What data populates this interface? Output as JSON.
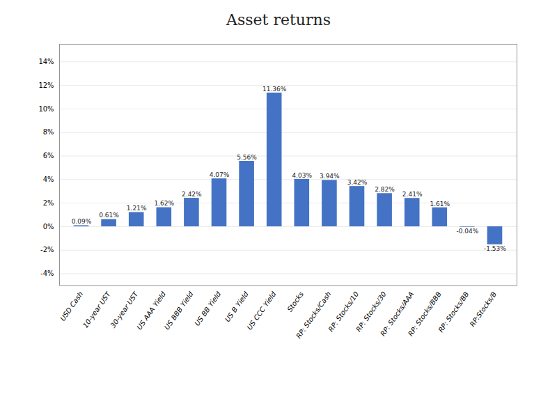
{
  "chart_data": {
    "type": "bar",
    "title": "Asset returns",
    "categories": [
      "USD Cash",
      "10-year UST",
      "30-year UST",
      "US AAA Yield",
      "US BBB Yield",
      "US BB Yield",
      "US B Yield",
      "US CCC Yield",
      "Stocks",
      "RP: Stocks/Cash",
      "RP: Stocks/10",
      "RP: Stocks/30",
      "RP: Stocks/AAA",
      "RP: Stocks/BBB",
      "RP: Stocks/BB",
      "RP:Stocks/B"
    ],
    "values": [
      0.0009,
      0.0061,
      0.0121,
      0.0162,
      0.0242,
      0.0407,
      0.0556,
      0.1136,
      0.0403,
      0.0394,
      0.0342,
      0.0282,
      0.0241,
      0.0161,
      -0.0004,
      -0.0153
    ],
    "value_labels": [
      "0.09%",
      "0.61%",
      "1.21%",
      "1.62%",
      "2.42%",
      "4.07%",
      "5.56%",
      "11.36%",
      "4.03%",
      "3.94%",
      "3.42%",
      "2.82%",
      "2.41%",
      "1.61%",
      "-0.04%",
      "-1.53%"
    ],
    "data_labels": true,
    "color": "#4472C4",
    "ylim": [
      -0.05,
      0.155
    ],
    "yticks": [
      {
        "value": -0.04,
        "label": "-4%"
      },
      {
        "value": -0.02,
        "label": "-2%"
      },
      {
        "value": 0.0,
        "label": "0%"
      },
      {
        "value": 0.02,
        "label": "2%"
      },
      {
        "value": 0.04,
        "label": "4%"
      },
      {
        "value": 0.06,
        "label": "6%"
      },
      {
        "value": 0.08,
        "label": "8%"
      },
      {
        "value": 0.1,
        "label": "10%"
      },
      {
        "value": 0.12,
        "label": "12%"
      },
      {
        "value": 0.14,
        "label": "14%"
      }
    ],
    "grid": true
  }
}
